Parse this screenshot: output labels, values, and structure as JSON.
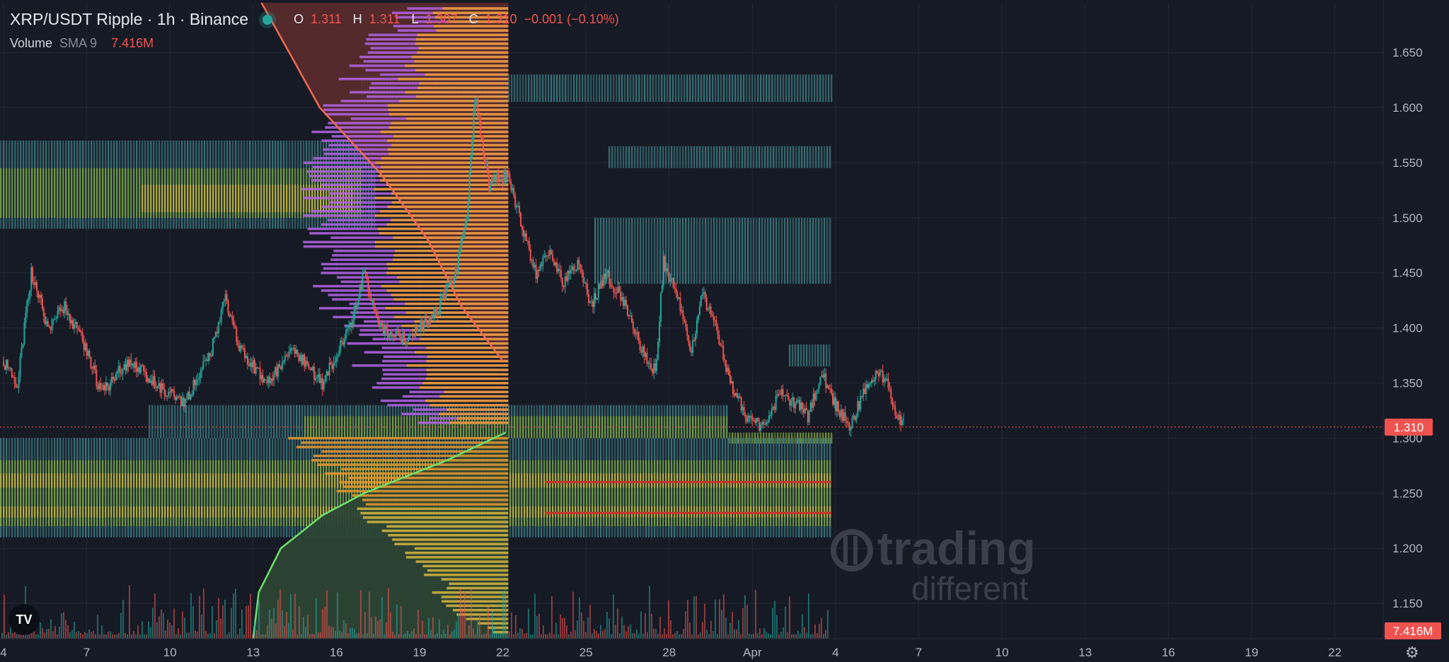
{
  "header": {
    "symbol": "XRP/USDT Ripple · 1h · Binance",
    "o_label": "O",
    "o_value": "1.311",
    "h_label": "H",
    "h_value": "1.311",
    "l_label": "L",
    "l_value": "1.307",
    "c_label": "C",
    "c_value": "1.310",
    "change": "−0.001 (−0.10%)",
    "volume_label": "Volume",
    "sma_label": "SMA 9",
    "volume_value": "7.416M"
  },
  "watermark": {
    "line1": "trading",
    "line2": "different"
  },
  "colors": {
    "background": "#161a25",
    "up": "#26a69a",
    "down": "#ef5350",
    "heat_blue": "#3f7f86",
    "heat_green": "#7fa63b",
    "heat_yellow": "#c9b63a",
    "profile_orange": "#e8992f",
    "profile_purple": "#b464e6",
    "profile_yellow": "#d7b63e",
    "ask_fill": "#5a2b2e",
    "bid_fill": "#2c4534",
    "ask_line": "#ef6a52",
    "bid_line": "#6fe06a"
  },
  "icons": {
    "logo": "tradingview-logo-icon",
    "settings": "gear-icon",
    "live": "live-dot-icon"
  },
  "chart_data": {
    "type": "line",
    "title": "XRP/USDT Ripple · 1h · Binance",
    "y_axis": {
      "range": [
        1.118,
        1.695
      ],
      "ticks": [
        "1.650",
        "1.600",
        "1.550",
        "1.500",
        "1.450",
        "1.400",
        "1.350",
        "1.300",
        "1.250",
        "1.200",
        "1.150"
      ]
    },
    "x_axis": {
      "ticks": [
        "4",
        "7",
        "10",
        "13",
        "16",
        "19",
        "22",
        "25",
        "28",
        "Apr",
        "4",
        "7",
        "10",
        "13",
        "16",
        "19",
        "22"
      ]
    },
    "last_price": 1.31,
    "last_price_label": "1.310",
    "volume_last_label": "7.416M",
    "price_path": [
      [
        0,
        1.37
      ],
      [
        0.5,
        1.35
      ],
      [
        1,
        1.45
      ],
      [
        1.6,
        1.4
      ],
      [
        2.2,
        1.42
      ],
      [
        3,
        1.38
      ],
      [
        3.5,
        1.34
      ],
      [
        4.5,
        1.37
      ],
      [
        5.5,
        1.35
      ],
      [
        6.5,
        1.33
      ],
      [
        7.5,
        1.38
      ],
      [
        8,
        1.43
      ],
      [
        8.5,
        1.38
      ],
      [
        9.5,
        1.35
      ],
      [
        10.5,
        1.38
      ],
      [
        11.5,
        1.35
      ],
      [
        12.5,
        1.4
      ],
      [
        13,
        1.45
      ],
      [
        13.6,
        1.4
      ],
      [
        14.5,
        1.39
      ],
      [
        15.5,
        1.41
      ],
      [
        16.3,
        1.45
      ],
      [
        16.7,
        1.5
      ],
      [
        17,
        1.61
      ],
      [
        17.5,
        1.53
      ],
      [
        18.2,
        1.54
      ],
      [
        18.7,
        1.49
      ],
      [
        19.2,
        1.45
      ],
      [
        19.7,
        1.47
      ],
      [
        20.2,
        1.44
      ],
      [
        20.7,
        1.46
      ],
      [
        21.2,
        1.42
      ],
      [
        21.7,
        1.45
      ],
      [
        22.2,
        1.43
      ],
      [
        22.6,
        1.41
      ],
      [
        23,
        1.38
      ],
      [
        23.5,
        1.36
      ],
      [
        23.8,
        1.46
      ],
      [
        24.3,
        1.43
      ],
      [
        24.8,
        1.38
      ],
      [
        25.2,
        1.43
      ],
      [
        25.7,
        1.4
      ],
      [
        26.2,
        1.35
      ],
      [
        26.8,
        1.32
      ],
      [
        27.4,
        1.31
      ],
      [
        28,
        1.34
      ],
      [
        28.6,
        1.33
      ],
      [
        29,
        1.32
      ],
      [
        29.5,
        1.36
      ],
      [
        30,
        1.33
      ],
      [
        30.5,
        1.31
      ],
      [
        31,
        1.34
      ],
      [
        31.5,
        1.36
      ],
      [
        31.9,
        1.35
      ],
      [
        32.2,
        1.32
      ],
      [
        32.5,
        1.31
      ]
    ],
    "ask_depth_curve": [
      [
        1.37,
        22
      ],
      [
        1.42,
        20.5
      ],
      [
        1.48,
        19.3
      ],
      [
        1.54,
        17.6
      ],
      [
        1.6,
        15.4
      ],
      [
        1.65,
        14.3
      ],
      [
        1.695,
        13.3
      ]
    ],
    "bid_depth_curve": [
      [
        1.305,
        22.1
      ],
      [
        1.28,
        20
      ],
      [
        1.25,
        17
      ],
      [
        1.23,
        15.5
      ],
      [
        1.2,
        14
      ],
      [
        1.16,
        13.2
      ],
      [
        1.118,
        13
      ]
    ],
    "volume_sma": "SMA 9"
  }
}
